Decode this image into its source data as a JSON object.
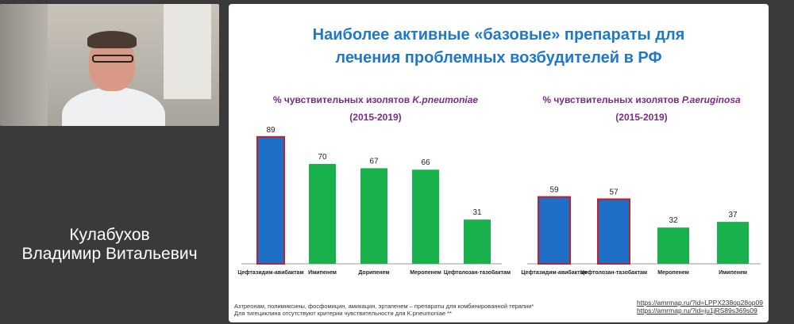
{
  "speaker": {
    "surname": "Кулабухов",
    "given_names": "Владимир Витальевич"
  },
  "slide": {
    "title_line1": "Наиболее активные «базовые» препараты для",
    "title_line2": "лечения проблемных возбудителей в РФ",
    "footnote_line1": "Азтреонам, полимиксины, фосфомицин, амикацин, эртапенем – препараты для комбинированной терапии*",
    "footnote_line2": "Для тигециклина отсутствуют критерии чувствительности для K.pneumoniae **",
    "links": [
      "https://amrmap.ru/?id=LPPX238op28op09",
      "https://amrmap.ru/?id=ju1jRS89s369s09"
    ]
  },
  "colors": {
    "highlight_bar": "#1f6fc7",
    "highlight_border": "#c0202a",
    "regular_bar": "#18b14c",
    "heading": "#7b2a87",
    "title": "#1f78c8"
  },
  "chart_data": [
    {
      "type": "bar",
      "title_prefix": "% чувствительных изолятов ",
      "title_organism": "K.pneumoniae",
      "subtitle": "(2015-2019)",
      "categories": [
        "Цефтазидим-авибактам",
        "Имипенем",
        "Дорипенем",
        "Меропенем",
        "Цефтолозан-тазобактам"
      ],
      "values": [
        89,
        70,
        67,
        66,
        31
      ],
      "highlighted": [
        true,
        false,
        false,
        false,
        false
      ],
      "ylim": [
        0,
        100
      ],
      "grid": false
    },
    {
      "type": "bar",
      "title_prefix": "% чувствительных изолятов ",
      "title_organism": "P.aeruginosa",
      "subtitle": "(2015-2019)",
      "categories": [
        "Цефтазидим-авибактам",
        "Цефтолозан-тазобактам",
        "Меропенем",
        "Имипенем"
      ],
      "values": [
        59,
        57,
        32,
        37
      ],
      "highlighted": [
        true,
        true,
        false,
        false
      ],
      "ylim": [
        0,
        100
      ],
      "grid": false
    }
  ]
}
